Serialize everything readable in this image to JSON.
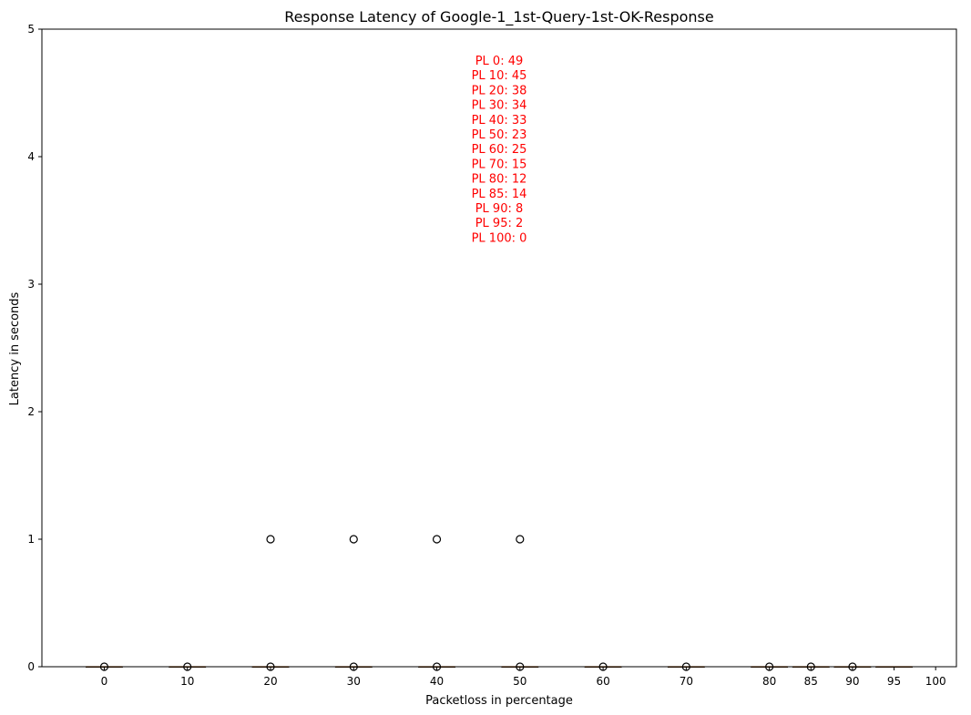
{
  "chart_data": {
    "type": "box",
    "title": "Response Latency of Google-1_1st-Query-1st-OK-Response",
    "xlabel": "Packetloss in percentage",
    "ylabel": "Latency in seconds",
    "ylim": [
      0,
      5
    ],
    "yticks": [
      "0",
      "1",
      "2",
      "3",
      "4",
      "5"
    ],
    "categories": [
      "0",
      "10",
      "20",
      "30",
      "40",
      "50",
      "60",
      "70",
      "80",
      "85",
      "90",
      "95",
      "100"
    ],
    "boxes": [
      {
        "x": 0,
        "median": 0,
        "q1": 0,
        "q3": 0,
        "whisker_low": 0,
        "whisker_high": 0,
        "outliers": [
          0
        ]
      },
      {
        "x": 10,
        "median": 0,
        "q1": 0,
        "q3": 0,
        "whisker_low": 0,
        "whisker_high": 0,
        "outliers": [
          0
        ]
      },
      {
        "x": 20,
        "median": 0,
        "q1": 0,
        "q3": 0,
        "whisker_low": 0,
        "whisker_high": 0,
        "outliers": [
          0,
          1
        ]
      },
      {
        "x": 30,
        "median": 0,
        "q1": 0,
        "q3": 0,
        "whisker_low": 0,
        "whisker_high": 0,
        "outliers": [
          0,
          1
        ]
      },
      {
        "x": 40,
        "median": 0,
        "q1": 0,
        "q3": 0,
        "whisker_low": 0,
        "whisker_high": 0,
        "outliers": [
          0,
          1
        ]
      },
      {
        "x": 50,
        "median": 0,
        "q1": 0,
        "q3": 0,
        "whisker_low": 0,
        "whisker_high": 0,
        "outliers": [
          0,
          1
        ]
      },
      {
        "x": 60,
        "median": 0,
        "q1": 0,
        "q3": 0,
        "whisker_low": 0,
        "whisker_high": 0,
        "outliers": [
          0
        ]
      },
      {
        "x": 70,
        "median": 0,
        "q1": 0,
        "q3": 0,
        "whisker_low": 0,
        "whisker_high": 0,
        "outliers": [
          0
        ]
      },
      {
        "x": 80,
        "median": 0,
        "q1": 0,
        "q3": 0,
        "whisker_low": 0,
        "whisker_high": 0,
        "outliers": [
          0
        ]
      },
      {
        "x": 85,
        "median": 0,
        "q1": 0,
        "q3": 0,
        "whisker_low": 0,
        "whisker_high": 0,
        "outliers": [
          0
        ]
      },
      {
        "x": 90,
        "median": 0,
        "q1": 0,
        "q3": 0,
        "whisker_low": 0,
        "whisker_high": 0,
        "outliers": [
          0
        ]
      },
      {
        "x": 95,
        "median": 0,
        "q1": 0,
        "q3": 0,
        "whisker_low": 0,
        "whisker_high": 0,
        "outliers": []
      },
      {
        "x": 100,
        "median": null,
        "q1": null,
        "q3": null,
        "whisker_low": null,
        "whisker_high": null,
        "outliers": []
      }
    ],
    "annotations": [
      "PL 0: 49",
      "PL 10: 45",
      "PL 20: 38",
      "PL 30: 34",
      "PL 40: 33",
      "PL 50: 23",
      "PL 60: 25",
      "PL 70: 15",
      "PL 80: 12",
      "PL 85: 14",
      "PL 90: 8",
      "PL 95: 2",
      "PL 100: 0"
    ],
    "colors": {
      "annotation": "#ff0000",
      "median": "#ff7f0e",
      "box": "#000000",
      "outlier": "#000000"
    },
    "grid": false,
    "legend": "none"
  }
}
